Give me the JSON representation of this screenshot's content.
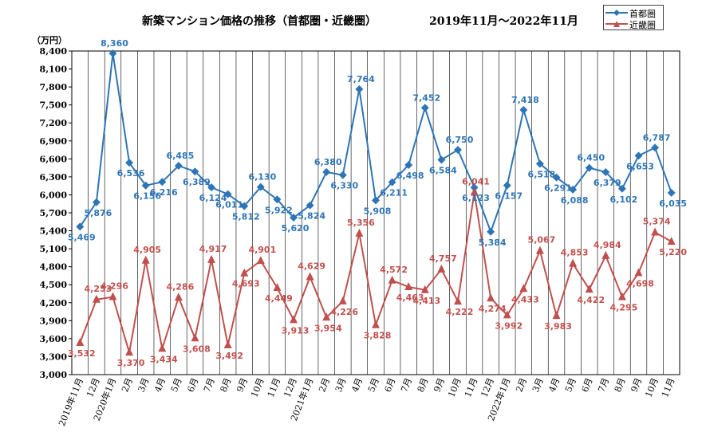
{
  "chart_data": {
    "type": "line",
    "title": "新築マンション価格の推移（首都圏・近畿圏）",
    "period": "2019年11月〜2022年11月",
    "ylabel": "（万円）",
    "ylim": [
      3000,
      8400
    ],
    "yticks": [
      "3,000",
      "3,300",
      "3,600",
      "3,900",
      "4,200",
      "4,500",
      "4,800",
      "5,100",
      "5,400",
      "5,700",
      "6,000",
      "6,300",
      "6,600",
      "6,900",
      "7,200",
      "7,500",
      "7,800",
      "8,100",
      "8,400"
    ],
    "categories": [
      "2019年11月",
      "12月",
      "2020年1月",
      "2月",
      "3月",
      "4月",
      "5月",
      "6月",
      "7月",
      "8月",
      "9月",
      "10月",
      "11月",
      "12月",
      "2021年1月",
      "2月",
      "3月",
      "4月",
      "5月",
      "6月",
      "7月",
      "8月",
      "9月",
      "10月",
      "11月",
      "12月",
      "2022年1月",
      "2月",
      "3月",
      "4月",
      "5月",
      "6月",
      "7月",
      "8月",
      "9月",
      "10月",
      "11月"
    ],
    "grid": "vertical",
    "legend": "top-right",
    "series": [
      {
        "name": "首都圏",
        "color": "#2e75b6",
        "marker": "diamond",
        "values": [
          5469,
          5876,
          8360,
          6536,
          6156,
          6216,
          6485,
          6389,
          6124,
          6011,
          5812,
          6130,
          5922,
          5620,
          5824,
          6380,
          6330,
          7764,
          5908,
          6211,
          6498,
          7452,
          6584,
          6750,
          6123,
          5384,
          6157,
          7418,
          6518,
          6291,
          6088,
          6450,
          6379,
          6102,
          6653,
          6787,
          6035
        ],
        "labels": [
          "5,469",
          "5,876",
          "8,360",
          "6,536",
          "6,156",
          "6,216",
          "6,485",
          "6,389",
          "6,124",
          "6,011",
          "5,812",
          "6,130",
          "5,922",
          "5,620",
          "5,824",
          "6,380",
          "6,330",
          "7,764",
          "5,908",
          "6,211",
          "6,498",
          "7,452",
          "6,584",
          "6,750",
          "6,123",
          "5,384",
          "6,157",
          "7,418",
          "6,518",
          "6,291",
          "6,088",
          "6,450",
          "6,379",
          "6,102",
          "6,653",
          "6,787",
          "6,035"
        ]
      },
      {
        "name": "近畿圏",
        "color": "#c0504d",
        "marker": "triangle",
        "values": [
          3532,
          4253,
          4296,
          3370,
          4905,
          3434,
          4286,
          3608,
          4917,
          3492,
          4693,
          4901,
          4449,
          3913,
          4629,
          3954,
          4226,
          5356,
          3828,
          4572,
          4463,
          4413,
          4757,
          4222,
          6041,
          4274,
          3992,
          4433,
          5067,
          3983,
          4853,
          4422,
          4984,
          4295,
          4698,
          5374,
          5220
        ],
        "labels": [
          "3,532",
          "4,253",
          "4,296",
          "3,370",
          "4,905",
          "3,434",
          "4,286",
          "3,608",
          "4,917",
          "3,492",
          "4,693",
          "4,901",
          "4,449",
          "3,913",
          "4,629",
          "3,954",
          "4,226",
          "5,356",
          "3,828",
          "4,572",
          "4,463",
          "4,413",
          "4,757",
          "4,222",
          "6,041",
          "4,274",
          "3,992",
          "4,433",
          "5,067",
          "3,983",
          "4,853",
          "4,422",
          "4,984",
          "4,295",
          "4,698",
          "5,374",
          "5,220"
        ]
      }
    ]
  }
}
